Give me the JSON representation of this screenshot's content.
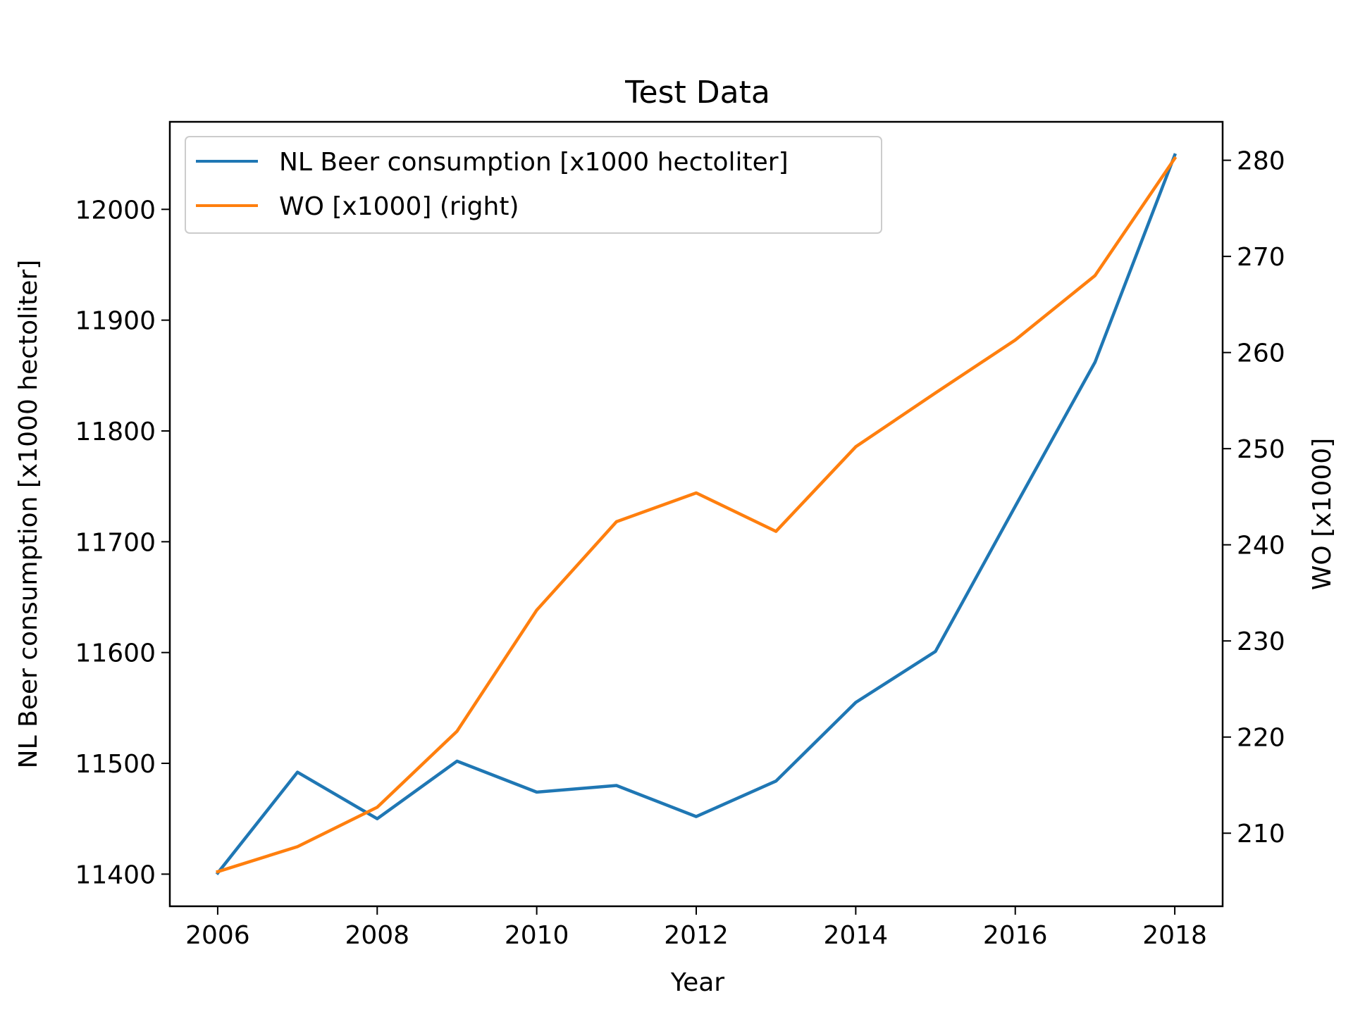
{
  "chart_data": {
    "type": "line",
    "title": "Test Data",
    "xlabel": "Year",
    "ylabel": "NL Beer consumption [x1000 hectoliter]",
    "y2label": "WO [x1000]",
    "x": [
      2006,
      2007,
      2008,
      2009,
      2010,
      2011,
      2012,
      2013,
      2014,
      2015,
      2016,
      2017,
      2018
    ],
    "xlim": [
      2005.4,
      2018.6
    ],
    "ylim": [
      11371,
      12079
    ],
    "y2lim": [
      202.4,
      284
    ],
    "xticks": [
      2006,
      2008,
      2010,
      2012,
      2014,
      2016,
      2018
    ],
    "yticks": [
      11400,
      11500,
      11600,
      11700,
      11800,
      11900,
      12000
    ],
    "y2ticks": [
      210,
      220,
      230,
      240,
      250,
      260,
      270,
      280
    ],
    "grid": false,
    "legend_position": "upper left",
    "series": [
      {
        "name": "NL Beer consumption [x1000 hectoliter]",
        "axis": "left",
        "color": "#1f77b4",
        "values": [
          11401,
          11492,
          11450,
          11502,
          11474,
          11480,
          11452,
          11484,
          11555,
          11601,
          11732,
          11862,
          12049
        ]
      },
      {
        "name": "WO [x1000] (right)",
        "axis": "right",
        "color": "#ff7f0e",
        "values": [
          206,
          208.6,
          212.7,
          220.6,
          233.2,
          242.4,
          245.4,
          241.4,
          250.2,
          255.8,
          261.3,
          268,
          280.2
        ]
      }
    ]
  }
}
